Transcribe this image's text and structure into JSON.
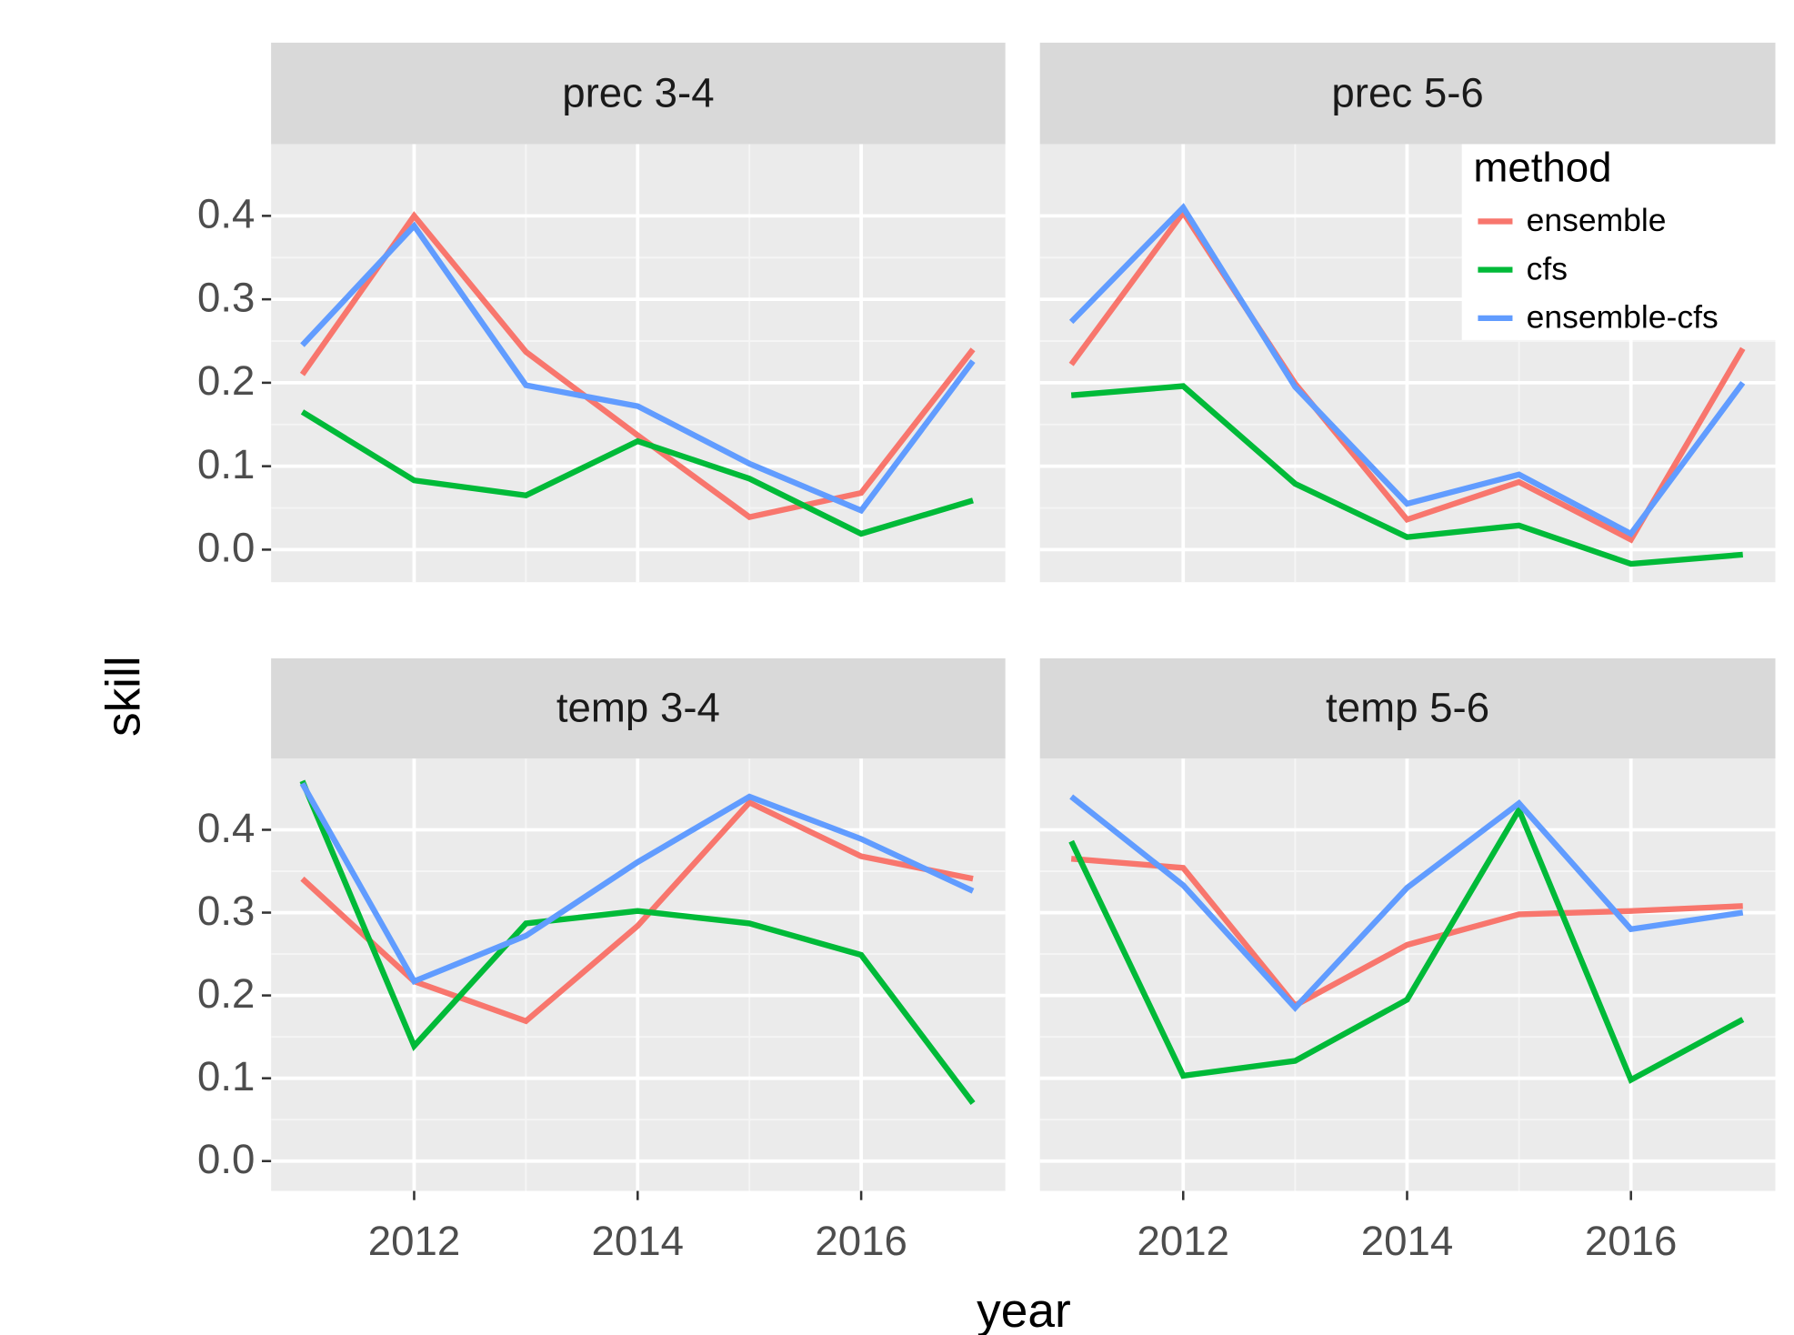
{
  "xlabel": "year",
  "ylabel": "skill",
  "legend_title": "method",
  "chart_data": [
    {
      "type": "line",
      "title": "prec 3-4",
      "x": [
        2011,
        2012,
        2013,
        2014,
        2015,
        2016,
        2017
      ],
      "xlim": [
        2010.72,
        2017.29
      ],
      "ylim": [
        -0.039,
        0.486
      ],
      "xticks": [
        2012,
        2014,
        2016
      ],
      "yticks": [
        {
          "value": 0,
          "label": "0.0"
        },
        0.1,
        0.2,
        0.3,
        0.4
      ],
      "grid": true,
      "series": [
        {
          "name": "ensemble",
          "color": "#F8766D",
          "values": [
            0.21,
            0.4,
            0.237,
            0.137,
            0.039,
            0.068,
            0.24
          ]
        },
        {
          "name": "cfs",
          "color": "#00BA38",
          "values": [
            0.165,
            0.083,
            0.065,
            0.13,
            0.085,
            0.019,
            0.059
          ]
        },
        {
          "name": "ensemble-cfs",
          "color": "#619CFF",
          "values": [
            0.245,
            0.388,
            0.197,
            0.172,
            0.103,
            0.047,
            0.226
          ]
        }
      ]
    },
    {
      "type": "line",
      "title": "prec 5-6",
      "x": [
        2011,
        2012,
        2013,
        2014,
        2015,
        2016,
        2017
      ],
      "xlim": [
        2010.72,
        2017.29
      ],
      "ylim": [
        -0.039,
        0.486
      ],
      "xticks": [
        2012,
        2014,
        2016
      ],
      "yticks": [
        {
          "value": 0,
          "label": "0.0"
        },
        0.1,
        0.2,
        0.3,
        0.4
      ],
      "grid": true,
      "legend": "top-right",
      "series": [
        {
          "name": "ensemble",
          "color": "#F8766D",
          "values": [
            0.222,
            0.404,
            0.199,
            0.036,
            0.081,
            0.012,
            0.241
          ]
        },
        {
          "name": "cfs",
          "color": "#00BA38",
          "values": [
            0.185,
            0.196,
            0.079,
            0.015,
            0.029,
            -0.017,
            -0.006
          ]
        },
        {
          "name": "ensemble-cfs",
          "color": "#619CFF",
          "values": [
            0.273,
            0.41,
            0.195,
            0.055,
            0.09,
            0.019,
            0.2
          ]
        }
      ]
    },
    {
      "type": "line",
      "title": "temp 3-4",
      "x": [
        2011,
        2012,
        2013,
        2014,
        2015,
        2016,
        2017
      ],
      "xlim": [
        2010.72,
        2017.29
      ],
      "ylim": [
        -0.036,
        0.486
      ],
      "xticks": [
        2012,
        2014,
        2016
      ],
      "yticks": [
        {
          "value": 0,
          "label": "0.0"
        },
        0.1,
        0.2,
        0.3,
        0.4
      ],
      "grid": true,
      "series": [
        {
          "name": "ensemble",
          "color": "#F8766D",
          "values": [
            0.341,
            0.217,
            0.169,
            0.284,
            0.433,
            0.368,
            0.341
          ]
        },
        {
          "name": "cfs",
          "color": "#00BA38",
          "values": [
            0.459,
            0.139,
            0.287,
            0.302,
            0.287,
            0.249,
            0.07
          ]
        },
        {
          "name": "ensemble-cfs",
          "color": "#619CFF",
          "values": [
            0.456,
            0.217,
            0.272,
            0.361,
            0.44,
            0.389,
            0.326
          ]
        }
      ]
    },
    {
      "type": "line",
      "title": "temp 5-6",
      "x": [
        2011,
        2012,
        2013,
        2014,
        2015,
        2016,
        2017
      ],
      "xlim": [
        2010.72,
        2017.29
      ],
      "ylim": [
        -0.036,
        0.486
      ],
      "xticks": [
        2012,
        2014,
        2016
      ],
      "yticks": [
        {
          "value": 0,
          "label": "0.0"
        },
        0.1,
        0.2,
        0.3,
        0.4
      ],
      "grid": true,
      "series": [
        {
          "name": "ensemble",
          "color": "#F8766D",
          "values": [
            0.365,
            0.354,
            0.188,
            0.261,
            0.298,
            0.302,
            0.308
          ]
        },
        {
          "name": "cfs",
          "color": "#00BA38",
          "values": [
            0.386,
            0.103,
            0.121,
            0.195,
            0.424,
            0.098,
            0.171
          ]
        },
        {
          "name": "ensemble-cfs",
          "color": "#619CFF",
          "values": [
            0.44,
            0.333,
            0.185,
            0.33,
            0.432,
            0.28,
            0.3
          ]
        }
      ]
    }
  ]
}
